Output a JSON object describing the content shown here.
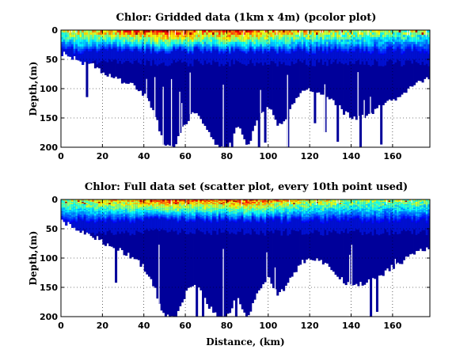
{
  "chart_data": [
    {
      "type": "heatmap",
      "title": "Chlor: Gridded data (1km x 4m) (pcolor plot)",
      "xlabel": "",
      "ylabel": "Depth,(m)",
      "xlim": [
        0,
        178
      ],
      "ylim": [
        0,
        200
      ],
      "y_reversed": true,
      "xticks": [
        0,
        20,
        40,
        60,
        80,
        100,
        120,
        140,
        160
      ],
      "yticks": [
        0,
        50,
        100,
        150,
        200
      ],
      "grid": true,
      "colormap": [
        "#00008f",
        "#0000ff",
        "#0080ff",
        "#00ffff",
        "#80ff80",
        "#ffff00",
        "#ff8000",
        "#ff0000",
        "#800000"
      ],
      "background_color": "#ffffff",
      "bottom_depth": {
        "x": [
          0,
          5,
          10,
          15,
          20,
          25,
          30,
          35,
          40,
          45,
          50,
          55,
          58,
          62,
          65,
          70,
          75,
          80,
          85,
          90,
          95,
          100,
          105,
          110,
          115,
          120,
          125,
          130,
          135,
          140,
          145,
          150,
          155,
          160,
          165,
          170,
          175,
          178
        ],
        "depth": [
          40,
          45,
          55,
          60,
          70,
          80,
          90,
          95,
          110,
          140,
          200,
          200,
          170,
          150,
          140,
          170,
          200,
          200,
          160,
          200,
          150,
          130,
          165,
          140,
          110,
          100,
          105,
          115,
          135,
          150,
          148,
          140,
          130,
          120,
          110,
          95,
          85,
          80
        ]
      },
      "surface_chlorophyll_relative": {
        "x": [
          0,
          10,
          20,
          30,
          40,
          50,
          60,
          70,
          80,
          90,
          100,
          110,
          120,
          130,
          140,
          150,
          160,
          170,
          178
        ],
        "level": [
          0.5,
          0.6,
          0.65,
          0.7,
          0.75,
          0.85,
          0.8,
          0.7,
          0.75,
          0.8,
          0.7,
          0.65,
          0.6,
          0.55,
          0.55,
          0.5,
          0.45,
          0.5,
          0.4
        ]
      }
    },
    {
      "type": "heatmap",
      "title": "Chlor: Full data set (scatter plot, every 10th point used)",
      "xlabel": "Distance, (km)",
      "ylabel": "Depth,(m)",
      "xlim": [
        0,
        178
      ],
      "ylim": [
        0,
        200
      ],
      "y_reversed": true,
      "xticks": [
        0,
        20,
        40,
        60,
        80,
        100,
        120,
        140,
        160
      ],
      "yticks": [
        0,
        50,
        100,
        150,
        200
      ],
      "grid": true,
      "colormap": [
        "#00008f",
        "#0000ff",
        "#0080ff",
        "#00ffff",
        "#80ff80",
        "#ffff00",
        "#ff8000",
        "#ff0000",
        "#800000"
      ],
      "background_color": "#ffffff",
      "bottom_depth": {
        "x": [
          0,
          5,
          10,
          15,
          20,
          25,
          30,
          35,
          40,
          45,
          50,
          55,
          58,
          62,
          65,
          70,
          75,
          80,
          85,
          90,
          95,
          100,
          105,
          110,
          115,
          120,
          125,
          130,
          135,
          140,
          145,
          150,
          155,
          160,
          165,
          170,
          175,
          178
        ],
        "depth": [
          35,
          45,
          55,
          62,
          72,
          80,
          90,
          100,
          115,
          150,
          200,
          200,
          175,
          150,
          140,
          175,
          200,
          200,
          165,
          200,
          155,
          130,
          165,
          140,
          110,
          100,
          105,
          118,
          135,
          150,
          145,
          138,
          128,
          115,
          105,
          95,
          85,
          80
        ]
      },
      "surface_chlorophyll_relative": {
        "x": [
          0,
          10,
          20,
          30,
          40,
          50,
          60,
          70,
          80,
          90,
          100,
          110,
          120,
          130,
          140,
          150,
          160,
          170,
          178
        ],
        "level": [
          0.5,
          0.55,
          0.6,
          0.65,
          0.7,
          0.8,
          0.75,
          0.7,
          0.75,
          0.8,
          0.7,
          0.65,
          0.55,
          0.55,
          0.5,
          0.5,
          0.45,
          0.5,
          0.45
        ]
      }
    }
  ]
}
